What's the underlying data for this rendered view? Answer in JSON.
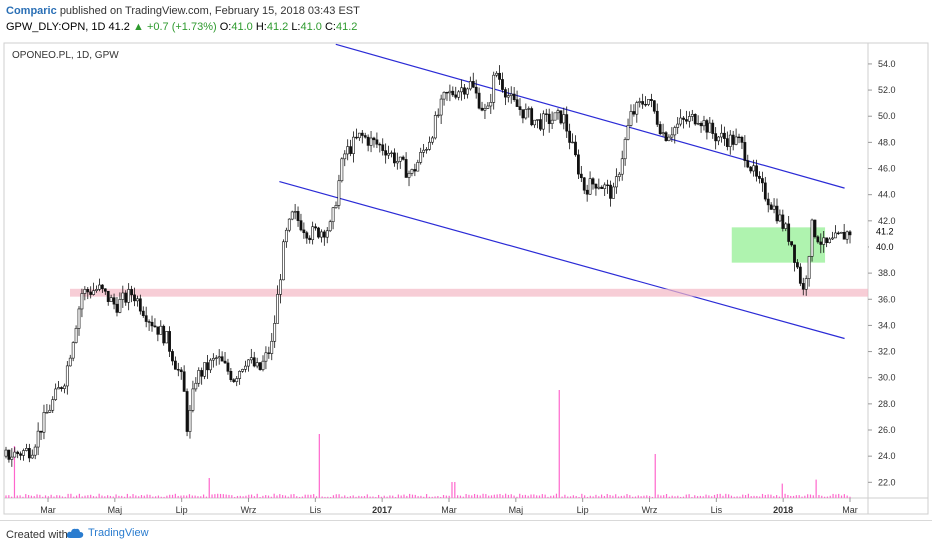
{
  "header": {
    "author": "Comparic",
    "published_text": "published on TradingView.com, February 15, 2018 03:43 EST",
    "symbol": "GPW_DLY:OPN, 1D",
    "last": "41.2",
    "change": "+0.7 (+1.73%)",
    "open_label": "O:",
    "open": "41.0",
    "high_label": "H:",
    "high": "41.2",
    "low_label": "L:",
    "low": "41.0",
    "close_label": "C:",
    "close": "41.2"
  },
  "footer": {
    "created_with": "Created with",
    "brand": "TradingView"
  },
  "colors": {
    "channel": "#2b2bd6",
    "support": "#f4b8c4",
    "box": "#a6f2a6",
    "volume": "#ff66cc",
    "candle": "#111111",
    "axis_text": "#333333"
  },
  "chart_data": {
    "type": "candlestick",
    "title": "OPONEO.PL, 1D, GPW",
    "y_axis_side": "right",
    "ylim": [
      20.8,
      55.6
    ],
    "ytick_labels": [
      "54.0",
      "52.0",
      "50.0",
      "48.0",
      "46.0",
      "44.0",
      "42.0",
      "40.0",
      "38.0",
      "36.0",
      "34.0",
      "32.0",
      "30.0",
      "28.0",
      "26.0",
      "24.0",
      "22.0"
    ],
    "x_tick_labels": [
      "Mar",
      "Maj",
      "Lip",
      "Wrz",
      "Lis",
      "2017",
      "Mar",
      "Maj",
      "Lip",
      "Wrz",
      "Lis",
      "2018",
      "Mar"
    ],
    "x_tick_bold": [
      "2017",
      "2018"
    ],
    "last_price_labels": [
      "41.2",
      "40.0"
    ],
    "price_path": [
      [
        0,
        24.0
      ],
      [
        0.03,
        24.5
      ],
      [
        0.05,
        27.5
      ],
      [
        0.07,
        30.0
      ],
      [
        0.09,
        36.5
      ],
      [
        0.11,
        36.8
      ],
      [
        0.13,
        35.5
      ],
      [
        0.15,
        36.5
      ],
      [
        0.17,
        34.5
      ],
      [
        0.19,
        33.0
      ],
      [
        0.21,
        29.5
      ],
      [
        0.215,
        26.0
      ],
      [
        0.225,
        30.0
      ],
      [
        0.25,
        31.5
      ],
      [
        0.27,
        30.0
      ],
      [
        0.285,
        31.5
      ],
      [
        0.3,
        30.5
      ],
      [
        0.315,
        32.5
      ],
      [
        0.33,
        40.5
      ],
      [
        0.34,
        42.5
      ],
      [
        0.36,
        41.0
      ],
      [
        0.385,
        41.5
      ],
      [
        0.4,
        47.0
      ],
      [
        0.42,
        48.5
      ],
      [
        0.45,
        47.5
      ],
      [
        0.48,
        45.5
      ],
      [
        0.5,
        48.0
      ],
      [
        0.52,
        51.5
      ],
      [
        0.55,
        52.5
      ],
      [
        0.57,
        50.0
      ],
      [
        0.58,
        53.5
      ],
      [
        0.6,
        51.0
      ],
      [
        0.63,
        49.5
      ],
      [
        0.66,
        50.0
      ],
      [
        0.685,
        44.5
      ],
      [
        0.7,
        45.0
      ],
      [
        0.72,
        44.0
      ],
      [
        0.74,
        50.0
      ],
      [
        0.76,
        51.5
      ],
      [
        0.78,
        48.5
      ],
      [
        0.8,
        49.5
      ],
      [
        0.82,
        50.0
      ],
      [
        0.84,
        48.5
      ],
      [
        0.87,
        48.0
      ],
      [
        0.89,
        45.0
      ],
      [
        0.91,
        43.0
      ],
      [
        0.93,
        40.5
      ],
      [
        0.945,
        36.5
      ],
      [
        0.955,
        41.5
      ],
      [
        0.97,
        40.0
      ],
      [
        1.0,
        41.2
      ]
    ],
    "volume": {
      "baseline": 0.3,
      "spikes": [
        {
          "pos": 0.01,
          "value": 6.5
        },
        {
          "pos": 0.24,
          "value": 2.5
        },
        {
          "pos": 0.37,
          "value": 8.0
        },
        {
          "pos": 0.655,
          "value": 13.5
        },
        {
          "pos": 0.77,
          "value": 5.5
        },
        {
          "pos": 0.53,
          "value": 2.0
        },
        {
          "pos": 0.96,
          "value": 2.3
        },
        {
          "pos": 0.92,
          "value": 1.8
        }
      ]
    },
    "annotations": [
      {
        "type": "descending-channel-upper",
        "from": [
          "2016-12-01",
          55.5
        ],
        "to": [
          "2018-03-15",
          44.5
        ]
      },
      {
        "type": "descending-channel-lower",
        "from": [
          "2016-10-10",
          45.0
        ],
        "to": [
          "2018-03-15",
          33.0
        ]
      },
      {
        "type": "support-band",
        "y": [
          36.2,
          36.8
        ]
      },
      {
        "type": "consolidation-box",
        "x_from": "2017-12-01",
        "x_to": "2018-02-25",
        "y": [
          38.8,
          41.5
        ]
      }
    ]
  }
}
